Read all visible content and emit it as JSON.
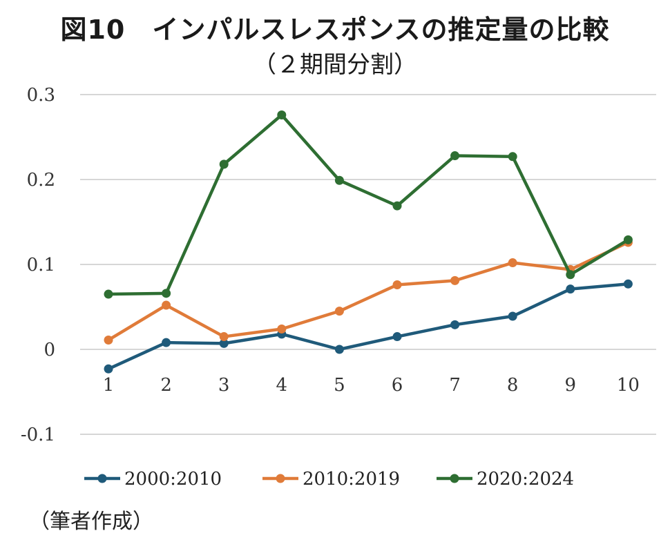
{
  "title_line1": "図10　インパルスレスポンスの推定量の比較",
  "title_line2": "（２期間分割）",
  "source_note": "（筆者作成）",
  "chart_data": {
    "type": "line",
    "x": [
      1,
      2,
      3,
      4,
      5,
      6,
      7,
      8,
      9,
      10
    ],
    "ylim": [
      -0.1,
      0.3
    ],
    "yticks": [
      -0.1,
      0,
      0.1,
      0.2,
      0.3
    ],
    "ytick_labels": [
      "-0.1",
      "0",
      "0.1",
      "0.2",
      "0.3"
    ],
    "grid": true,
    "legend_position": "bottom",
    "series": [
      {
        "name": "2000:2010",
        "color": "#1f5a7a",
        "values": [
          -0.023,
          0.008,
          0.007,
          0.018,
          0.0,
          0.015,
          0.029,
          0.039,
          0.071,
          0.077
        ]
      },
      {
        "name": "2010:2019",
        "color": "#e07b39",
        "values": [
          0.011,
          0.052,
          0.015,
          0.024,
          0.045,
          0.076,
          0.081,
          0.102,
          0.094,
          0.126
        ]
      },
      {
        "name": "2020:2024",
        "color": "#2e6e32",
        "values": [
          0.065,
          0.066,
          0.218,
          0.276,
          0.199,
          0.169,
          0.228,
          0.227,
          0.088,
          0.129
        ]
      }
    ]
  }
}
